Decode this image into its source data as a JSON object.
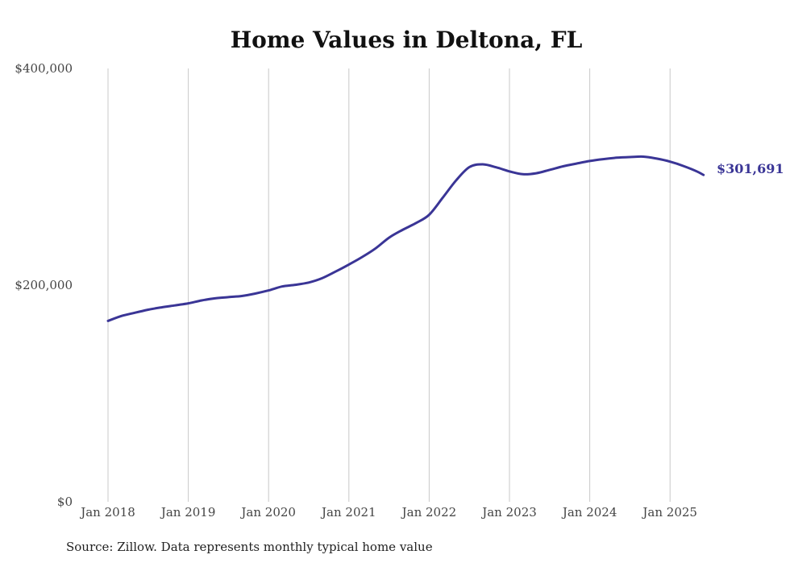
{
  "chart_data": {
    "type": "line",
    "title": "Home Values in Deltona, FL",
    "xlabel": "",
    "ylabel": "",
    "ylim": [
      0,
      400000
    ],
    "y_ticks": [
      {
        "value": 0,
        "label": "$0"
      },
      {
        "value": 200000,
        "label": "$200,000"
      },
      {
        "value": 400000,
        "label": "$400,000"
      }
    ],
    "x_ticks": [
      "Jan 2018",
      "Jan 2019",
      "Jan 2020",
      "Jan 2021",
      "Jan 2022",
      "Jan 2023",
      "Jan 2024",
      "Jan 2025"
    ],
    "grid": "vertical",
    "line_color": "#3a3596",
    "series": [
      {
        "x": [
          "2018-01",
          "2018-03",
          "2018-05",
          "2018-07",
          "2018-09",
          "2018-11",
          "2019-01",
          "2019-03",
          "2019-05",
          "2019-07",
          "2019-09",
          "2019-11",
          "2020-01",
          "2020-03",
          "2020-05",
          "2020-07",
          "2020-09",
          "2020-11",
          "2021-01",
          "2021-03",
          "2021-05",
          "2021-07",
          "2021-09",
          "2021-11",
          "2022-01",
          "2022-03",
          "2022-05",
          "2022-07",
          "2022-09",
          "2022-11",
          "2023-01",
          "2023-03",
          "2023-05",
          "2023-07",
          "2023-09",
          "2023-11",
          "2024-01",
          "2024-03",
          "2024-05",
          "2024-07",
          "2024-09",
          "2024-11",
          "2025-01",
          "2025-03",
          "2025-05",
          "2025-06"
        ],
        "values": [
          167000,
          171500,
          174500,
          177300,
          179500,
          181300,
          183200,
          185900,
          187800,
          188900,
          190000,
          192200,
          195100,
          198700,
          200300,
          202400,
          206400,
          212500,
          219000,
          226000,
          234000,
          243800,
          250900,
          257200,
          265000,
          280500,
          296500,
          308900,
          311500,
          308800,
          305000,
          302400,
          303300,
          306400,
          309700,
          312200,
          314600,
          316300,
          317600,
          318200,
          318600,
          316800,
          314000,
          310000,
          305000,
          301691
        ]
      }
    ],
    "end_label": "$301,691",
    "source": "Source: Zillow. Data represents monthly typical home value"
  }
}
